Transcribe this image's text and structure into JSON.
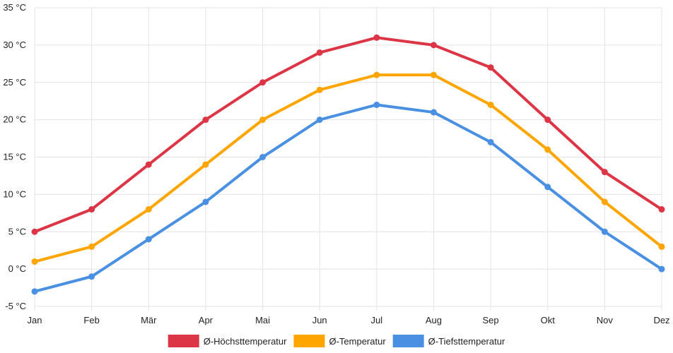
{
  "chart_data": {
    "type": "line",
    "title": "",
    "xlabel": "",
    "ylabel": "",
    "categories": [
      "Jan",
      "Feb",
      "Mär",
      "Apr",
      "Mai",
      "Jun",
      "Jul",
      "Aug",
      "Sep",
      "Okt",
      "Nov",
      "Dez"
    ],
    "ylim": [
      -5,
      35
    ],
    "yticks": [
      -5,
      0,
      5,
      10,
      15,
      20,
      25,
      30,
      35
    ],
    "y_unit": "°C",
    "grid": true,
    "legend_position": "bottom",
    "series": [
      {
        "name": "Ø-Höchsttemperatur",
        "color": "#dc3545",
        "values": [
          5,
          8,
          14,
          20,
          25,
          29,
          31,
          30,
          27,
          20,
          13,
          8
        ]
      },
      {
        "name": "Ø-Temperatur",
        "color": "#ffa500",
        "values": [
          1,
          3,
          8,
          14,
          20,
          24,
          26,
          26,
          22,
          16,
          9,
          3
        ]
      },
      {
        "name": "Ø-Tiefsttemperatur",
        "color": "#4a90e2",
        "values": [
          -3,
          -1,
          4,
          9,
          15,
          20,
          22,
          21,
          17,
          11,
          5,
          0
        ]
      }
    ]
  }
}
